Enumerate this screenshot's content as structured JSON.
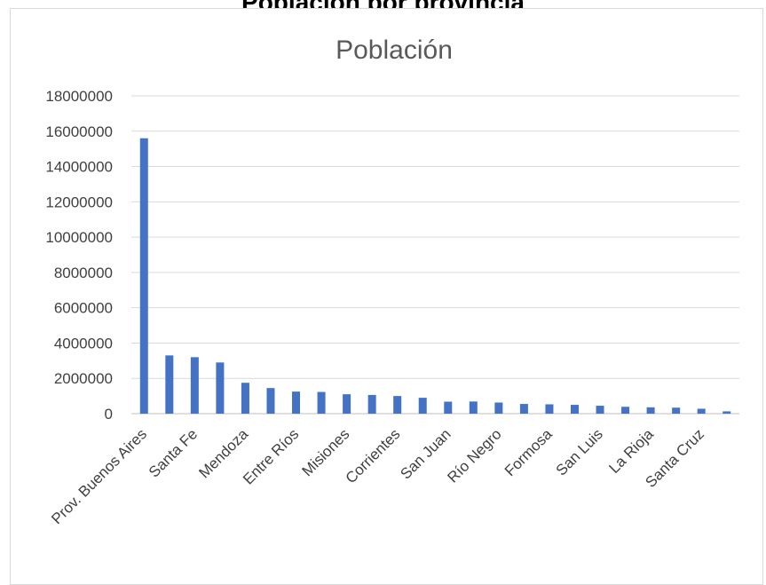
{
  "page": {
    "heading": "Población por provincia"
  },
  "colors": {
    "bar": "#4472c4",
    "grid": "#d9d9d9",
    "axis": "#bfbfbf",
    "text": "#404040"
  },
  "chart_data": {
    "type": "bar",
    "title": "Población",
    "xlabel": "",
    "ylabel": "",
    "ylim": [
      0,
      18000000
    ],
    "yticks": [
      0,
      2000000,
      4000000,
      6000000,
      8000000,
      10000000,
      12000000,
      14000000,
      16000000,
      18000000
    ],
    "grid": true,
    "legend": "none",
    "categories": [
      "Prov. Buenos Aires",
      "",
      "Santa Fe",
      "",
      "Mendoza",
      "",
      "Entre Ríos",
      "",
      "Misiones",
      "",
      "Corrientes",
      "",
      "San Juan",
      "",
      "Río Negro",
      "",
      "Formosa",
      "",
      "San Luis",
      "",
      "La Rioja",
      "",
      "Santa Cruz",
      ""
    ],
    "values": [
      15600000,
      3300000,
      3200000,
      2900000,
      1750000,
      1450000,
      1250000,
      1230000,
      1100000,
      1060000,
      1000000,
      900000,
      680000,
      690000,
      630000,
      550000,
      530000,
      500000,
      450000,
      390000,
      360000,
      340000,
      280000,
      130000
    ]
  }
}
